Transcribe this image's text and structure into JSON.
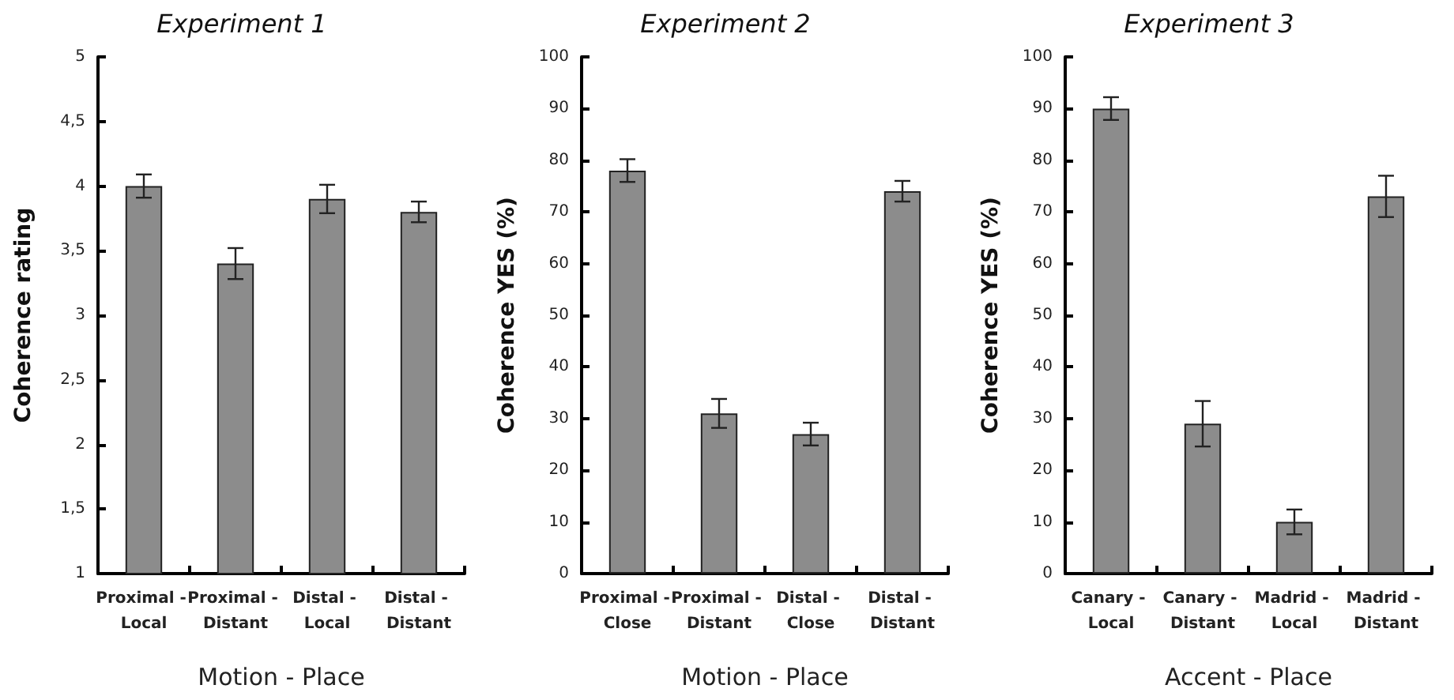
{
  "chart_data": [
    {
      "type": "bar",
      "title": "Experiment 1",
      "xlabel": "Motion - Place",
      "ylabel": "Coherence rating",
      "categories": [
        "Proximal - Local",
        "Proximal - Distant",
        "Distal - Local",
        "Distal - Distant"
      ],
      "values": [
        4.0,
        3.4,
        3.9,
        3.8
      ],
      "errors": [
        0.09,
        0.12,
        0.11,
        0.08
      ],
      "color": "#8c8c8c",
      "ylim": [
        1,
        5
      ],
      "yticks": [
        1,
        {
          "value": 1.5,
          "label": "1,5"
        },
        2,
        {
          "value": 2.5,
          "label": "2,5"
        },
        3,
        {
          "value": 3.5,
          "label": "3,5"
        },
        4,
        {
          "value": 4.5,
          "label": "4,5"
        },
        5
      ]
    },
    {
      "type": "bar",
      "title": "Experiment 2",
      "xlabel": "Motion - Place",
      "ylabel": "Coherence YES (%)",
      "categories": [
        "Proximal - Close",
        "Proximal - Distant",
        "Distal - Close",
        "Distal - Distant"
      ],
      "values": [
        78,
        31,
        27,
        74
      ],
      "errors": [
        2.2,
        2.8,
        2.2,
        2
      ],
      "color": "#8c8c8c",
      "ylim": [
        0,
        100
      ],
      "yticks": [
        0,
        10,
        20,
        30,
        40,
        50,
        60,
        70,
        80,
        90,
        100
      ]
    },
    {
      "type": "bar",
      "title": "Experiment 3",
      "xlabel": "Accent - Place",
      "ylabel": "Coherence YES (%)",
      "categories": [
        "Canary - Local",
        "Canary - Distant",
        "Madrid - Local",
        "Madrid - Distant"
      ],
      "values": [
        90,
        29,
        10,
        73
      ],
      "errors": [
        2.2,
        4.4,
        2.4,
        4
      ],
      "color": "#8c8c8c",
      "ylim": [
        0,
        100
      ],
      "yticks": [
        0,
        10,
        20,
        30,
        40,
        50,
        60,
        70,
        80,
        90,
        100
      ]
    }
  ]
}
